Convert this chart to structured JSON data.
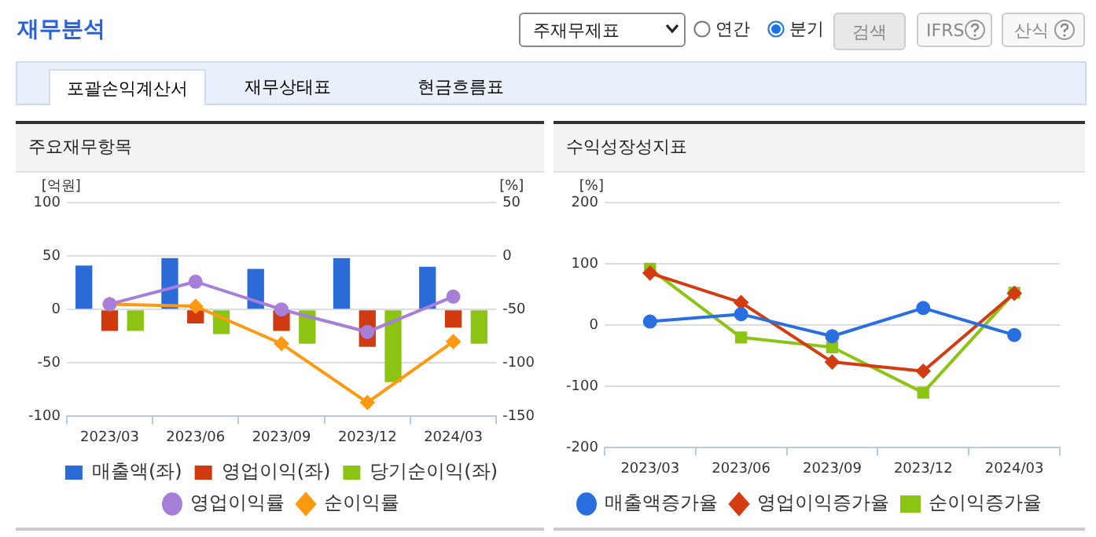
{
  "chart_data": [
    {
      "type": "other",
      "title": "재무분석",
      "annotations": [
        "주재무제표",
        "연간",
        "분기",
        "검색",
        "IFRS",
        "산식",
        "포괄손익계산서",
        "재무상태표",
        "현금흐름표"
      ]
    },
    {
      "type": "bar",
      "title": "주요재무항목",
      "ylabel": "[억원]",
      "y2label": "[%]",
      "categories": [
        "2023/03",
        "2023/06",
        "2023/09",
        "2023/12",
        "2024/03"
      ],
      "ylim": [
        -100,
        100
      ],
      "yticks": [
        -100,
        -50,
        0,
        50,
        100
      ],
      "y2lim": [
        -150,
        50
      ],
      "y2ticks": [
        -150,
        -100,
        -50,
        0,
        50
      ],
      "grid": "y",
      "legend": "bottom",
      "series": [
        {
          "name": "매출액(좌)",
          "color": "#2b6bd8",
          "values": [
            41,
            48,
            38,
            48,
            40
          ]
        },
        {
          "name": "영업이익(좌)",
          "color": "#d03a10",
          "values": [
            -20,
            -13,
            -20,
            -35,
            -17
          ]
        },
        {
          "name": "당기순이익(좌)",
          "color": "#8cc414",
          "values": [
            -20,
            -23,
            -32,
            -68,
            -32
          ]
        },
        {
          "name": "영업이익률",
          "type": "line",
          "axis": "y2",
          "marker": "circle",
          "color": "#a77fd8",
          "values": [
            -45,
            -24,
            -50,
            -71,
            -38
          ]
        },
        {
          "name": "순이익률",
          "type": "line",
          "axis": "y2",
          "marker": "diamond",
          "color": "#ff9a10",
          "values": [
            -45,
            -47,
            -82,
            -137,
            -80
          ]
        }
      ]
    },
    {
      "type": "line",
      "title": "수익성장성지표",
      "ylabel": "[%]",
      "categories": [
        "2023/03",
        "2023/06",
        "2023/09",
        "2023/12",
        "2024/03"
      ],
      "ylim": [
        -200,
        200
      ],
      "yticks": [
        -200,
        -100,
        0,
        100,
        200
      ],
      "grid": "y",
      "legend": "bottom",
      "series": [
        {
          "name": "매출액증가율",
          "marker": "circle",
          "color": "#2a6fe0",
          "values": [
            6,
            18,
            -18,
            28,
            -16
          ]
        },
        {
          "name": "영업이익증가율",
          "marker": "diamond",
          "color": "#d23c10",
          "values": [
            85,
            37,
            -60,
            -75,
            52
          ]
        },
        {
          "name": "순이익증가율",
          "marker": "square",
          "color": "#8cc414",
          "values": [
            92,
            -20,
            -36,
            -110,
            53
          ]
        }
      ]
    }
  ]
}
